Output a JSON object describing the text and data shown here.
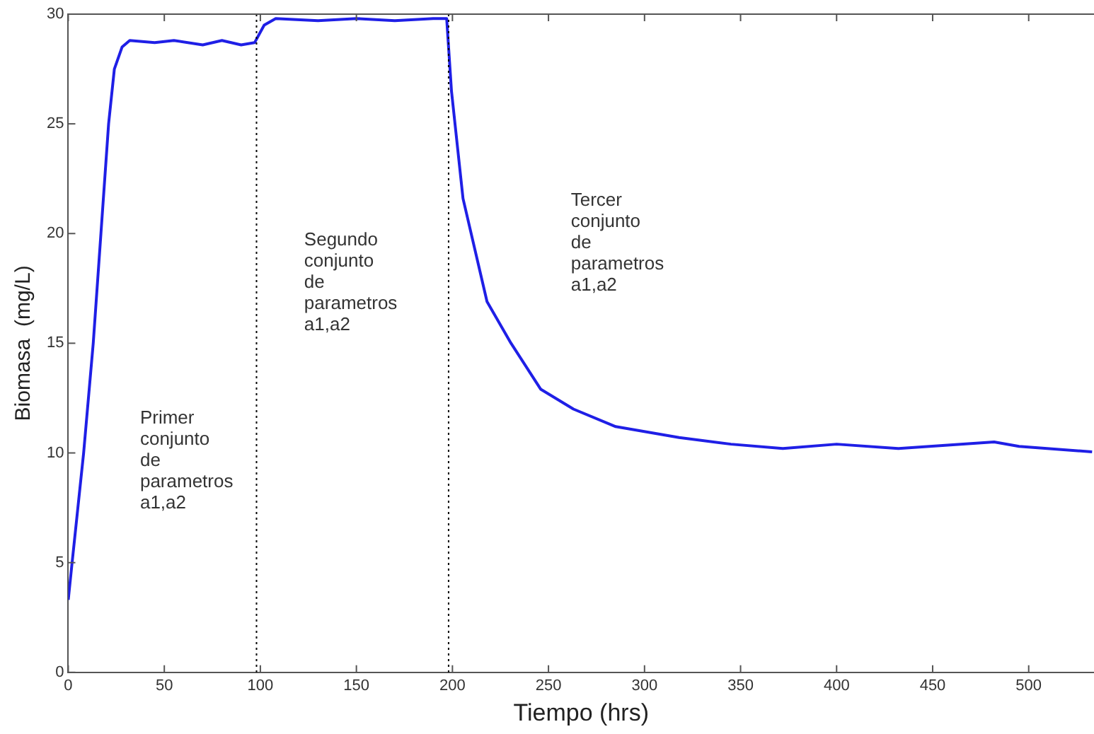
{
  "chart_data": {
    "type": "line",
    "xlabel": "Tiempo (hrs)",
    "ylabel": "Biomasa  (mg/L)",
    "x": [
      0,
      2,
      5,
      8,
      13,
      17,
      21,
      24,
      28,
      32,
      45,
      55,
      70,
      80,
      90,
      97,
      102,
      108,
      130,
      150,
      170,
      190,
      197,
      199.5,
      205.5,
      218,
      230.5,
      246,
      263,
      285,
      318,
      345,
      372,
      400,
      432,
      482,
      495,
      533
    ],
    "series": [
      {
        "color": "#1f1fe6",
        "values": [
          3.3,
          5,
          7.5,
          10,
          15,
          20,
          25,
          27.5,
          28.5,
          28.8,
          28.7,
          28.8,
          28.6,
          28.8,
          28.6,
          28.7,
          29.5,
          29.8,
          29.7,
          29.8,
          29.7,
          29.8,
          29.8,
          26.5,
          21.6,
          16.9,
          15,
          12.9,
          12,
          11.2,
          10.7,
          10.4,
          10.2,
          10.4,
          10.2,
          10.5,
          10.3,
          10.05
        ]
      }
    ],
    "xlim": [
      0,
      534
    ],
    "xticks": [
      0,
      50,
      100,
      150,
      200,
      250,
      300,
      350,
      400,
      450,
      500
    ],
    "ylim": [
      0,
      30
    ],
    "yticks": [
      0,
      5,
      10,
      15,
      20,
      25,
      30
    ],
    "ref_lines": [
      {
        "axis": "x",
        "value": 98,
        "color": "#000000",
        "line_style": "dotted"
      },
      {
        "axis": "x",
        "value": 198,
        "color": "#000000",
        "line_style": "dotted"
      }
    ],
    "annotations": [
      "Primer\nconjunto\nde\nparametros\na1,a2",
      "Segundo\nconjunto\nde\nparametros\na1,a2",
      "Tercer\nconjunto\nde\nparametros\na1,a2"
    ],
    "grid": false,
    "legend": false,
    "marker": "none",
    "line_style": "solid"
  }
}
